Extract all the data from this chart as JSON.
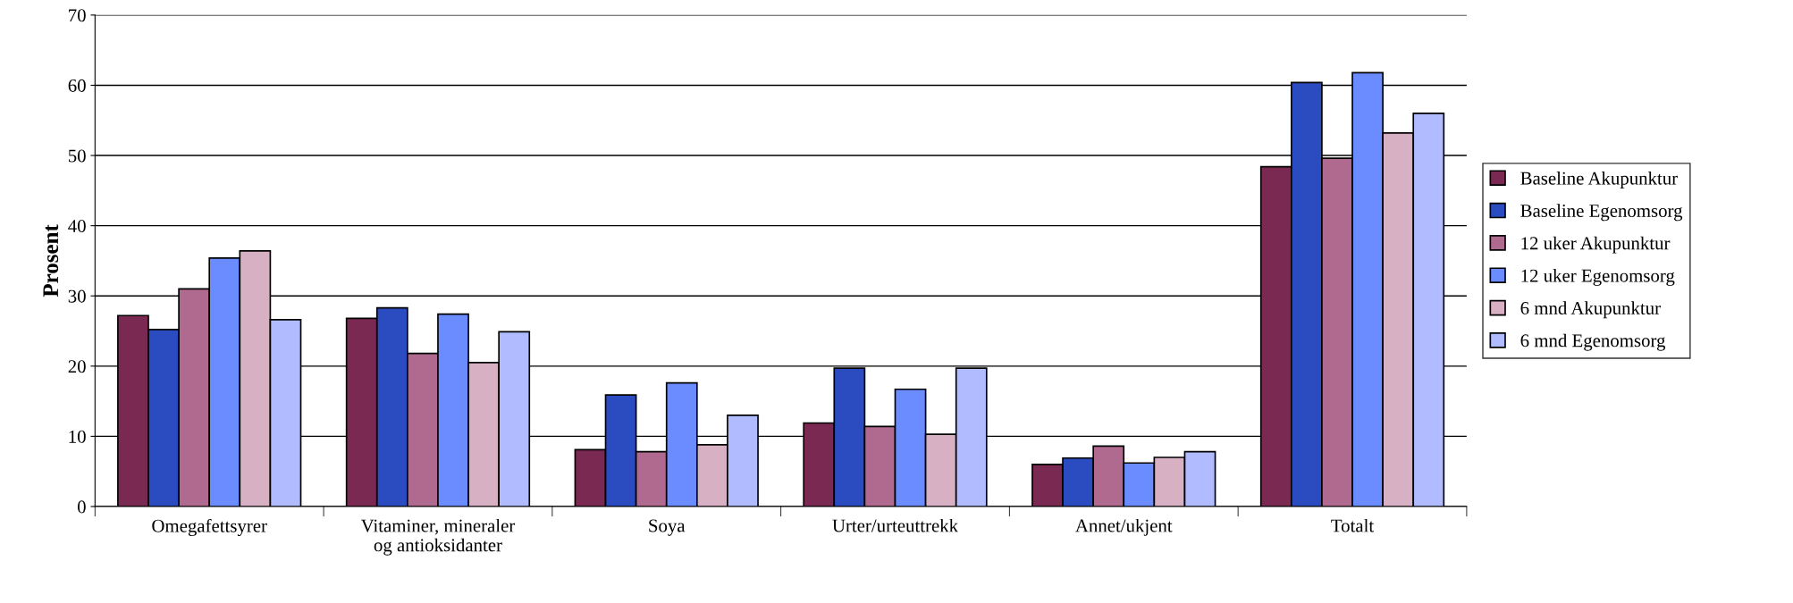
{
  "chart_data": {
    "type": "bar",
    "ylabel": "Prosent",
    "categories": [
      "Omegafettsyrer",
      "Vitaminer, mineraler\nog antioksidanter",
      "Soya",
      "Urter/urteuttrekk",
      "Annet/ukjent",
      "Totalt"
    ],
    "series": [
      {
        "name": "Baseline Akupunktur",
        "color": "#7a2a52",
        "values": [
          27.2,
          26.8,
          8.1,
          11.9,
          6.0,
          48.4
        ]
      },
      {
        "name": "Baseline Egenomsorg",
        "color": "#2a4cc0",
        "values": [
          25.2,
          28.3,
          15.9,
          19.7,
          6.9,
          60.4
        ]
      },
      {
        "name": "12 uker Akupunktur",
        "color": "#b06a90",
        "values": [
          31.0,
          21.8,
          7.8,
          11.4,
          8.6,
          49.6
        ]
      },
      {
        "name": "12 uker Egenomsorg",
        "color": "#6a8cff",
        "values": [
          35.4,
          27.4,
          17.6,
          16.7,
          6.2,
          61.8
        ]
      },
      {
        "name": "6 mnd Akupunktur",
        "color": "#d8b0c4",
        "values": [
          36.4,
          20.5,
          8.8,
          10.3,
          7.0,
          53.2
        ]
      },
      {
        "name": "6 mnd Egenomsorg",
        "color": "#b0bcff",
        "values": [
          26.6,
          24.9,
          13.0,
          19.7,
          7.8,
          56.0
        ]
      }
    ],
    "ylim": [
      0,
      70
    ],
    "yticks": [
      0,
      10,
      20,
      30,
      40,
      50,
      60,
      70
    ],
    "grid": "y",
    "legend": "right"
  }
}
